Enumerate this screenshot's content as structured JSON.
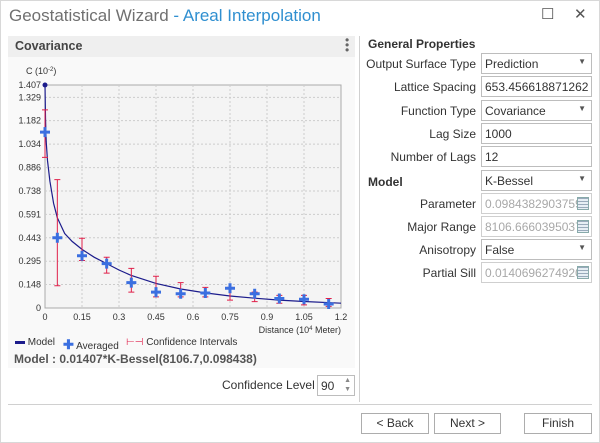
{
  "window": {
    "title": "Geostatistical Wizard",
    "subtitle": "- Areal Interpolation",
    "maximize_icon": "maximize-icon",
    "close_icon": "close-icon"
  },
  "left_panel": {
    "title": "Covariance",
    "legend": {
      "model": "Model",
      "averaged": "Averaged",
      "ci": "Confidence Intervals"
    },
    "model_text": "Model : 0.01407*K-Bessel(8106.7,0.098438)",
    "confidence_label": "Confidence Level",
    "confidence_value": "90"
  },
  "chart_data": {
    "type": "scatter",
    "ylabel": "C (10",
    "ylabel_exp": "-2",
    "ylabel_close": ")",
    "xlabel": "Distance (10",
    "xlabel_exp": "4",
    "xlabel_close": " Meter)",
    "xlim": [
      0,
      1.2
    ],
    "ylim": [
      0,
      1.407
    ],
    "xticks": [
      "0",
      "0.15",
      "0.3",
      "0.45",
      "0.6",
      "0.75",
      "0.9",
      "1.05",
      "1.2"
    ],
    "yticks": [
      "0",
      "0.148",
      "0.295",
      "0.443",
      "0.591",
      "0.738",
      "0.886",
      "1.034",
      "1.182",
      "1.329",
      "1.407"
    ],
    "grid": true,
    "legend_position": "bottom",
    "colors": {
      "model": "#1c1c8c",
      "averaged": "#3b6fe0",
      "ci": "#e0204a"
    },
    "averaged": [
      {
        "x": 0.0,
        "y": 1.11,
        "lo": 0.95,
        "hi": 1.25
      },
      {
        "x": 0.05,
        "y": 0.443,
        "lo": 0.14,
        "hi": 0.81
      },
      {
        "x": 0.15,
        "y": 0.33,
        "lo": 0.3,
        "hi": 0.44
      },
      {
        "x": 0.25,
        "y": 0.28,
        "lo": 0.22,
        "hi": 0.32
      },
      {
        "x": 0.35,
        "y": 0.16,
        "lo": 0.1,
        "hi": 0.25
      },
      {
        "x": 0.45,
        "y": 0.1,
        "lo": 0.07,
        "hi": 0.2
      },
      {
        "x": 0.55,
        "y": 0.09,
        "lo": 0.07,
        "hi": 0.16
      },
      {
        "x": 0.65,
        "y": 0.095,
        "lo": 0.07,
        "hi": 0.13
      },
      {
        "x": 0.75,
        "y": 0.125,
        "lo": 0.05,
        "hi": 0.13
      },
      {
        "x": 0.85,
        "y": 0.09,
        "lo": 0.04,
        "hi": 0.1
      },
      {
        "x": 0.95,
        "y": 0.06,
        "lo": 0.03,
        "hi": 0.08
      },
      {
        "x": 1.05,
        "y": 0.055,
        "lo": 0.02,
        "hi": 0.08
      },
      {
        "x": 1.15,
        "y": 0.025,
        "lo": 0.01,
        "hi": 0.06
      }
    ],
    "model": {
      "x": [
        0,
        0.002,
        0.005,
        0.01,
        0.02,
        0.035,
        0.05,
        0.08,
        0.11,
        0.15,
        0.2,
        0.25,
        0.3,
        0.35,
        0.45,
        0.55,
        0.65,
        0.75,
        0.85,
        0.95,
        1.05,
        1.2
      ],
      "y": [
        1.407,
        1.2,
        1.05,
        0.93,
        0.8,
        0.66,
        0.57,
        0.47,
        0.42,
        0.37,
        0.32,
        0.28,
        0.24,
        0.205,
        0.155,
        0.12,
        0.095,
        0.076,
        0.062,
        0.05,
        0.041,
        0.03
      ]
    }
  },
  "properties": {
    "general_header": "General Properties",
    "model_header": "Model",
    "rows": [
      {
        "label": "Output Surface Type",
        "value": "Prediction",
        "kind": "dropdown"
      },
      {
        "label": "Lattice Spacing",
        "value": "653.456618871262",
        "kind": "text"
      },
      {
        "label": "Function Type",
        "value": "Covariance",
        "kind": "dropdown"
      },
      {
        "label": "Lag Size",
        "value": "1000",
        "kind": "text"
      },
      {
        "label": "Number of Lags",
        "value": "12",
        "kind": "text"
      },
      {
        "label": "",
        "value": "K-Bessel",
        "kind": "dropdown"
      },
      {
        "label": "Parameter",
        "value": "0.0984382903759",
        "kind": "calc"
      },
      {
        "label": "Major Range",
        "value": "8106.6660395037",
        "kind": "calc"
      },
      {
        "label": "Anisotropy",
        "value": "False",
        "kind": "dropdown"
      },
      {
        "label": "Partial Sill",
        "value": "0.0140696274920",
        "kind": "calc"
      }
    ]
  },
  "buttons": {
    "back": "< Back",
    "next": "Next >",
    "finish": "Finish"
  }
}
